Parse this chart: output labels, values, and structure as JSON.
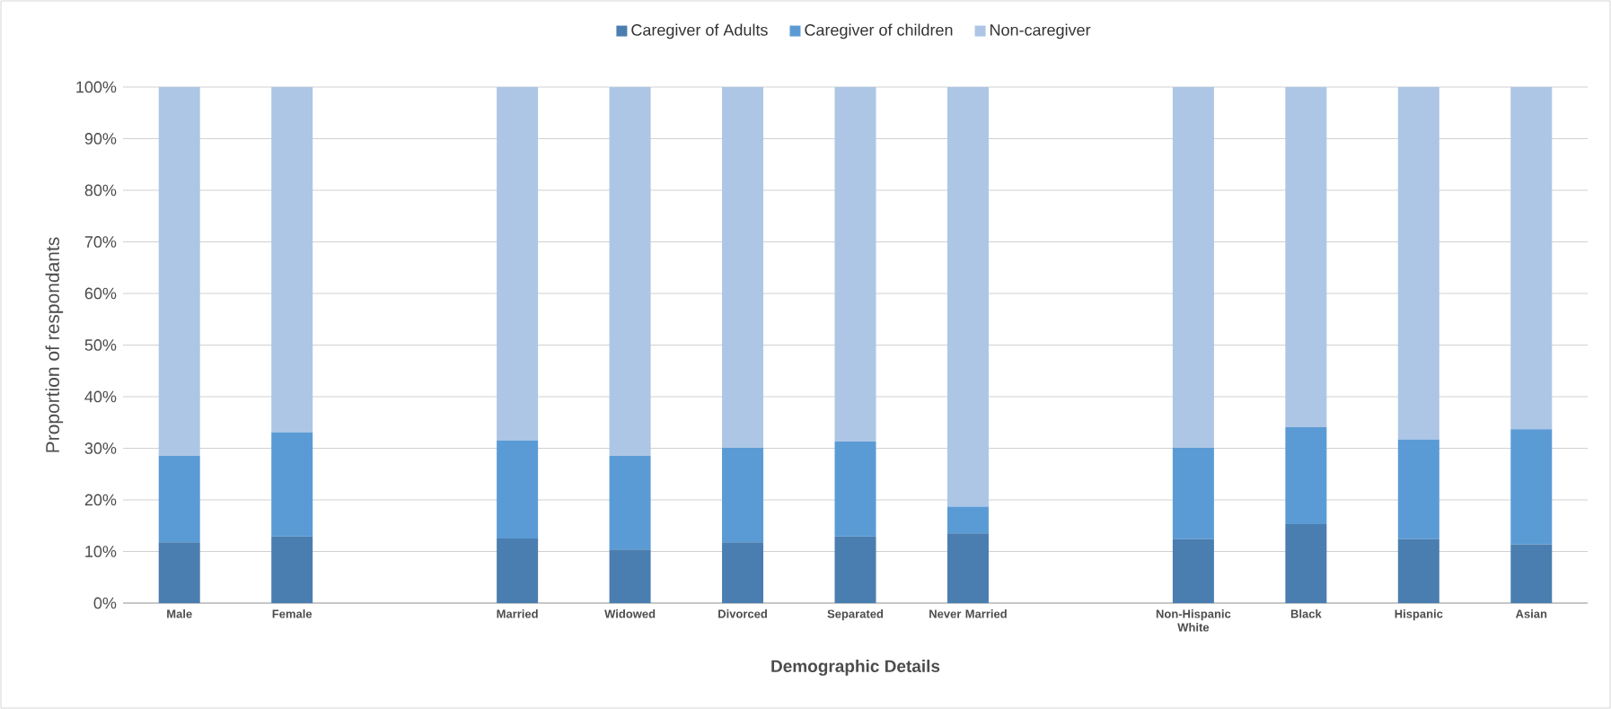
{
  "chart_data": {
    "type": "bar",
    "stacked": true,
    "xlabel": "Demographic Details",
    "ylabel": "Proportion of respondants",
    "categories": [
      "Male",
      "Female",
      null,
      "Married",
      "Widowed",
      "Divorced",
      "Separated",
      "Never Married",
      null,
      "Non-Hispanic White",
      "Black",
      "Hispanic",
      "Asian"
    ],
    "series": [
      {
        "name": "Caregiver of Adults",
        "color": "#4a7eb0",
        "values": [
          11.8,
          12.9,
          null,
          12.5,
          10.4,
          11.8,
          12.9,
          13.5,
          null,
          12.4,
          15.3,
          12.4,
          11.4
        ]
      },
      {
        "name": "Caregiver of children",
        "color": "#5b9bd5",
        "values": [
          16.7,
          20.2,
          null,
          19.0,
          18.1,
          18.3,
          18.4,
          5.2,
          null,
          17.7,
          18.8,
          19.3,
          22.3
        ]
      },
      {
        "name": "Non-caregiver",
        "color": "#adc6e5",
        "values": [
          71.5,
          66.9,
          null,
          68.5,
          71.5,
          69.9,
          68.7,
          81.3,
          null,
          69.9,
          65.9,
          68.3,
          66.3
        ]
      }
    ],
    "ylim": [
      0,
      100
    ],
    "yticks": [
      {
        "value": 0,
        "label": "0%"
      },
      {
        "value": 10,
        "label": "10%"
      },
      {
        "value": 20,
        "label": "20%"
      },
      {
        "value": 30,
        "label": "30%"
      },
      {
        "value": 40,
        "label": "40%"
      },
      {
        "value": 50,
        "label": "50%"
      },
      {
        "value": 60,
        "label": "60%"
      },
      {
        "value": 70,
        "label": "70%"
      },
      {
        "value": 80,
        "label": "80%"
      },
      {
        "value": 90,
        "label": "90%"
      },
      {
        "value": 100,
        "label": "100%"
      }
    ],
    "grid": "y",
    "legend": "top"
  }
}
